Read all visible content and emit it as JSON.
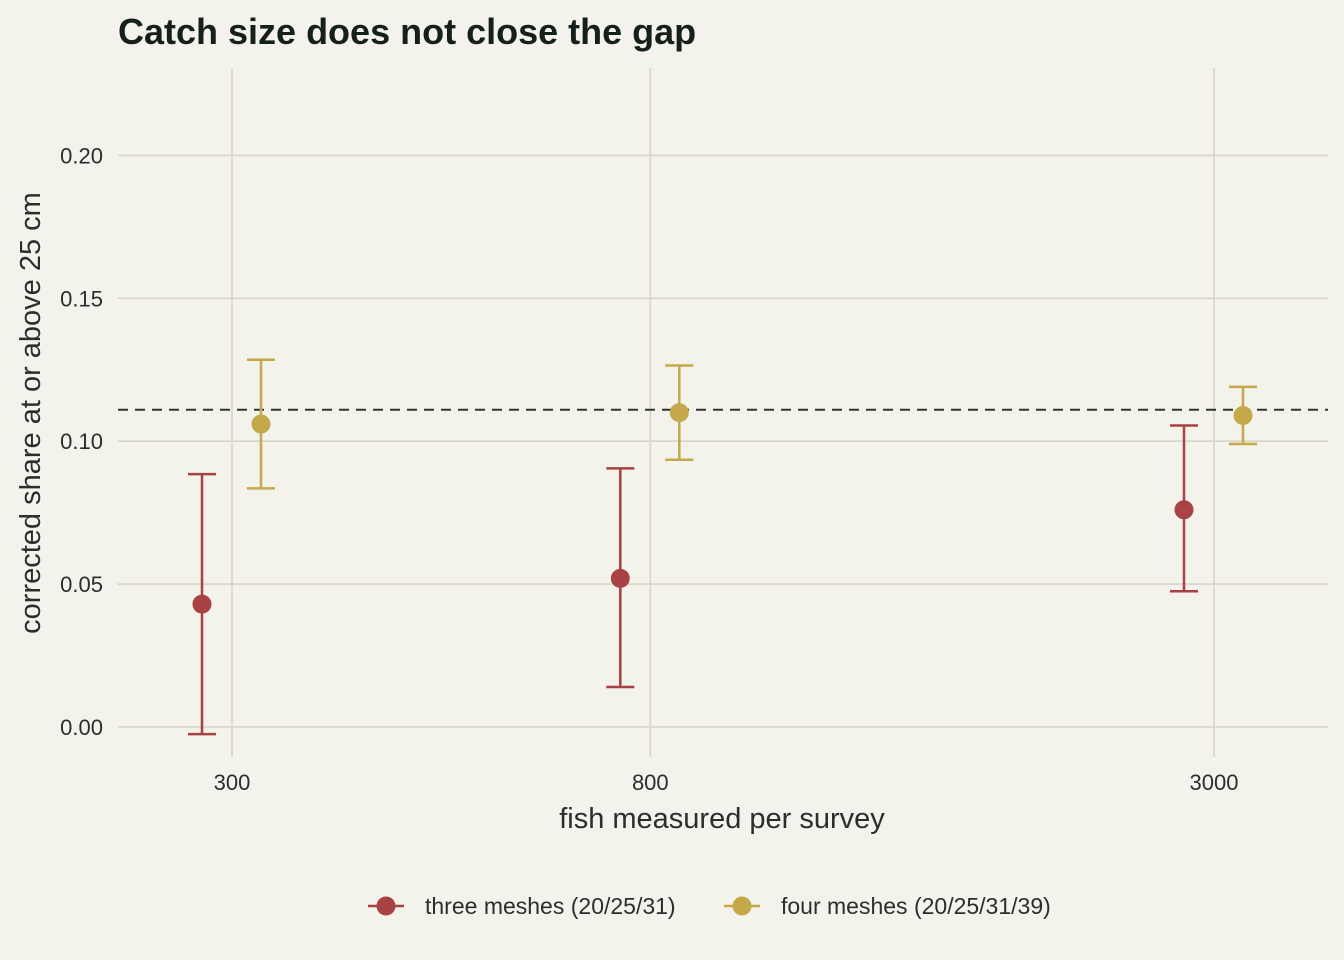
{
  "chart_data": {
    "type": "scatter",
    "title": "Catch size does not close the gap",
    "xlabel": "fish measured per survey",
    "ylabel": "corrected share at or above 25 cm",
    "x_scale": "log",
    "x_ticks": [
      "300",
      "800",
      "3000"
    ],
    "y_ticks": [
      "0.00",
      "0.05",
      "0.10",
      "0.15",
      "0.20"
    ],
    "ylim": [
      -0.01,
      0.23
    ],
    "grid": true,
    "legend_position": "bottom",
    "reference_line": {
      "y": 0.111,
      "style": "dashed",
      "color": "#333333"
    },
    "series": [
      {
        "name": "three meshes (20/25/31)",
        "color": "#a84244",
        "points": [
          {
            "x": 300,
            "y": 0.043,
            "lower": -0.0025,
            "upper": 0.0885
          },
          {
            "x": 800,
            "y": 0.052,
            "lower": 0.014,
            "upper": 0.0905
          },
          {
            "x": 3000,
            "y": 0.076,
            "lower": 0.0475,
            "upper": 0.1055
          }
        ]
      },
      {
        "name": "four meshes (20/25/31/39)",
        "color": "#c4a84a",
        "points": [
          {
            "x": 300,
            "y": 0.106,
            "lower": 0.0835,
            "upper": 0.1285
          },
          {
            "x": 800,
            "y": 0.11,
            "lower": 0.0935,
            "upper": 0.1265
          },
          {
            "x": 3000,
            "y": 0.109,
            "lower": 0.099,
            "upper": 0.119
          }
        ]
      }
    ]
  }
}
